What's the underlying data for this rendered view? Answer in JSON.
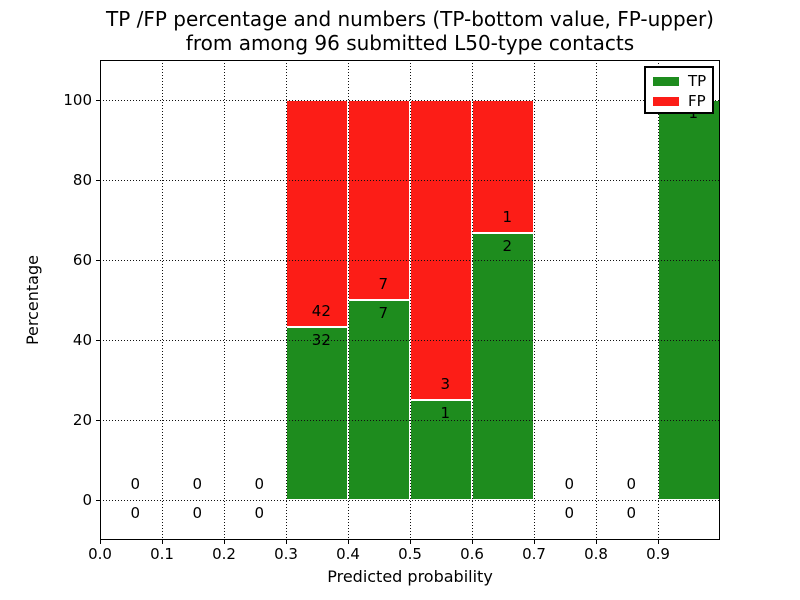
{
  "figure": {
    "title_line1": "TP /FP percentage and numbers (TP-bottom value, FP-upper)",
    "title_line2": "from among 96 submitted L50-type contacts",
    "xlabel": "Predicted probability",
    "ylabel": "Percentage"
  },
  "chart_data": {
    "type": "bar",
    "stacked": true,
    "title": "TP /FP percentage and numbers (TP-bottom value, FP-upper) from among 96 submitted L50-type contacts",
    "xlabel": "Predicted probability",
    "ylabel": "Percentage",
    "total_submitted_contacts": 96,
    "xlim": [
      0.0,
      1.0
    ],
    "ylim": [
      -10,
      110
    ],
    "grid": {
      "show": true,
      "style": "dotted",
      "above_bars": true
    },
    "xticks": [
      {
        "value": 0.0,
        "label": "0.0"
      },
      {
        "value": 0.1,
        "label": "0.1"
      },
      {
        "value": 0.2,
        "label": "0.2"
      },
      {
        "value": 0.3,
        "label": "0.3"
      },
      {
        "value": 0.4,
        "label": "0.4"
      },
      {
        "value": 0.5,
        "label": "0.5"
      },
      {
        "value": 0.6,
        "label": "0.6"
      },
      {
        "value": 0.7,
        "label": "0.7"
      },
      {
        "value": 0.8,
        "label": "0.8"
      },
      {
        "value": 0.9,
        "label": "0.9"
      }
    ],
    "yticks": [
      {
        "value": 0,
        "label": "0"
      },
      {
        "value": 20,
        "label": "20"
      },
      {
        "value": 40,
        "label": "40"
      },
      {
        "value": 60,
        "label": "60"
      },
      {
        "value": 80,
        "label": "80"
      },
      {
        "value": 100,
        "label": "100"
      }
    ],
    "colors": {
      "tp": "#1e8c1e",
      "fp": "#fc1d17"
    },
    "legend": {
      "position": "upper-right",
      "entries": [
        {
          "label": "TP",
          "color": "#1e8c1e"
        },
        {
          "label": "FP",
          "color": "#fc1d17"
        }
      ]
    },
    "bins": [
      {
        "x_start": 0.0,
        "x_end": 0.1,
        "tp_count": 0,
        "fp_count": 0,
        "tp_pct": 0,
        "fp_pct": 0,
        "fp_label": "0",
        "tp_label": "0"
      },
      {
        "x_start": 0.1,
        "x_end": 0.2,
        "tp_count": 0,
        "fp_count": 0,
        "tp_pct": 0,
        "fp_pct": 0,
        "fp_label": "0",
        "tp_label": "0"
      },
      {
        "x_start": 0.2,
        "x_end": 0.3,
        "tp_count": 0,
        "fp_count": 0,
        "tp_pct": 0,
        "fp_pct": 0,
        "fp_label": "0",
        "tp_label": "0"
      },
      {
        "x_start": 0.3,
        "x_end": 0.4,
        "tp_count": 32,
        "fp_count": 42,
        "tp_pct": 43.24,
        "fp_pct": 56.76,
        "fp_label": "42",
        "tp_label": "32"
      },
      {
        "x_start": 0.4,
        "x_end": 0.5,
        "tp_count": 7,
        "fp_count": 7,
        "tp_pct": 50,
        "fp_pct": 50,
        "fp_label": "7",
        "tp_label": "7"
      },
      {
        "x_start": 0.5,
        "x_end": 0.6,
        "tp_count": 1,
        "fp_count": 3,
        "tp_pct": 25,
        "fp_pct": 75,
        "fp_label": "3",
        "tp_label": "1"
      },
      {
        "x_start": 0.6,
        "x_end": 0.7,
        "tp_count": 2,
        "fp_count": 1,
        "tp_pct": 66.67,
        "fp_pct": 33.33,
        "fp_label": "1",
        "tp_label": "2"
      },
      {
        "x_start": 0.7,
        "x_end": 0.8,
        "tp_count": 0,
        "fp_count": 0,
        "tp_pct": 0,
        "fp_pct": 0,
        "fp_label": "0",
        "tp_label": "0"
      },
      {
        "x_start": 0.8,
        "x_end": 0.9,
        "tp_count": 0,
        "fp_count": 0,
        "tp_pct": 0,
        "fp_pct": 0,
        "fp_label": "0",
        "tp_label": "0"
      },
      {
        "x_start": 0.9,
        "x_end": 1.0,
        "tp_count": 1,
        "fp_count": 0,
        "tp_pct": 100,
        "fp_pct": 0,
        "fp_label": null,
        "tp_label": "1"
      }
    ]
  }
}
